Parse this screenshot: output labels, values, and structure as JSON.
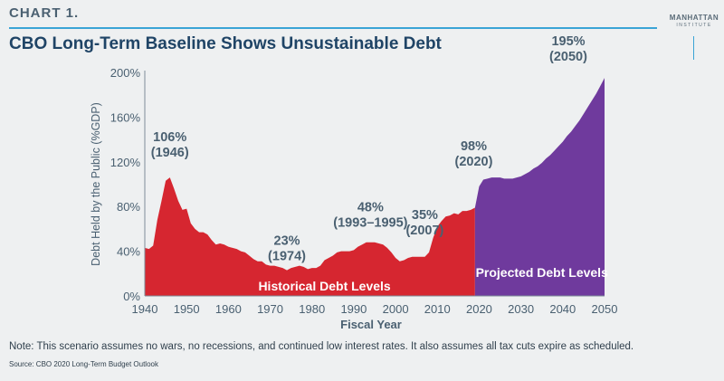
{
  "header": {
    "kicker": "CHART 1.",
    "title": "CBO Long-Term Baseline Shows Unsustainable Debt",
    "logo_line1": "MANHATTAN",
    "logo_line2": "INSTITUTE"
  },
  "footer": {
    "note": "Note: This scenario assumes no wars, no recessions, and continued low interest rates. It also assumes all tax cuts expire as scheduled.",
    "source": "Source: CBO 2020 Long-Term Budget Outlook"
  },
  "colors": {
    "historical": "#d62630",
    "projected": "#6f3a9d",
    "axis_text": "#4a6071",
    "annotation_text": "#4a6071",
    "accent_line": "#3aa4d6"
  },
  "chart_data": {
    "type": "area",
    "xlabel": "Fiscal Year",
    "ylabel": "Debt Held by the Public (%GDP)",
    "xlim": [
      1940,
      2050
    ],
    "ylim": [
      0,
      200
    ],
    "xticks": [
      1940,
      1950,
      1960,
      1970,
      1980,
      1990,
      2000,
      2010,
      2020,
      2030,
      2040,
      2050
    ],
    "yticks": [
      0,
      40,
      80,
      120,
      160,
      200
    ],
    "ytick_labels": [
      "0%",
      "40%",
      "80%",
      "120%",
      "160%",
      "200%"
    ],
    "series": [
      {
        "name": "Historical Debt Levels",
        "color": "#d62630",
        "x": [
          1940,
          1941,
          1942,
          1943,
          1944,
          1945,
          1946,
          1947,
          1948,
          1949,
          1950,
          1951,
          1952,
          1953,
          1954,
          1955,
          1956,
          1957,
          1958,
          1959,
          1960,
          1961,
          1962,
          1963,
          1964,
          1965,
          1966,
          1967,
          1968,
          1969,
          1970,
          1971,
          1972,
          1973,
          1974,
          1975,
          1976,
          1977,
          1978,
          1979,
          1980,
          1981,
          1982,
          1983,
          1984,
          1985,
          1986,
          1987,
          1988,
          1989,
          1990,
          1991,
          1992,
          1993,
          1994,
          1995,
          1996,
          1997,
          1998,
          1999,
          2000,
          2001,
          2002,
          2003,
          2004,
          2005,
          2006,
          2007,
          2008,
          2009,
          2010,
          2011,
          2012,
          2013,
          2014,
          2015,
          2016,
          2017,
          2018,
          2019
        ],
        "values": [
          43,
          42,
          45,
          68,
          85,
          103,
          106,
          96,
          85,
          77,
          78,
          65,
          60,
          57,
          57,
          55,
          50,
          46,
          47,
          46,
          44,
          43,
          42,
          40,
          39,
          36,
          33,
          31,
          31,
          28,
          27,
          27,
          26,
          25,
          23,
          25,
          26,
          27,
          26,
          24,
          25,
          25,
          27,
          32,
          34,
          36,
          39,
          40,
          40,
          40,
          41,
          44,
          46,
          48,
          48,
          48,
          47,
          46,
          43,
          39,
          34,
          31,
          32,
          34,
          35,
          35,
          35,
          35,
          39,
          52,
          62,
          67,
          71,
          72,
          74,
          73,
          76,
          76,
          77,
          79
        ]
      },
      {
        "name": "Projected Debt Levels",
        "color": "#6f3a9d",
        "x": [
          2019,
          2020,
          2021,
          2022,
          2023,
          2024,
          2025,
          2026,
          2027,
          2028,
          2029,
          2030,
          2031,
          2032,
          2033,
          2034,
          2035,
          2036,
          2037,
          2038,
          2039,
          2040,
          2041,
          2042,
          2043,
          2044,
          2045,
          2046,
          2047,
          2048,
          2049,
          2050
        ],
        "values": [
          79,
          98,
          104,
          105,
          106,
          106,
          106,
          105,
          105,
          105,
          106,
          107,
          109,
          111,
          114,
          116,
          119,
          123,
          126,
          130,
          134,
          138,
          143,
          147,
          152,
          157,
          163,
          169,
          175,
          181,
          188,
          195
        ]
      }
    ],
    "annotations": [
      {
        "x": 1946,
        "value": "106%",
        "year": "(1946)"
      },
      {
        "x": 1974,
        "value": "23%",
        "year": "(1974)"
      },
      {
        "x": 1994,
        "value": "48%",
        "year": "(1993–1995)"
      },
      {
        "x": 2007,
        "value": "35%",
        "year": "(2007)"
      },
      {
        "x": 2020,
        "value": "98%",
        "year": "(2020)"
      },
      {
        "x": 2050,
        "value": "195%",
        "year": "(2050)"
      }
    ],
    "area_labels": [
      {
        "series": 0,
        "text": "Historical Debt Levels"
      },
      {
        "series": 1,
        "text": "Projected Debt Levels"
      }
    ],
    "grid": false
  }
}
